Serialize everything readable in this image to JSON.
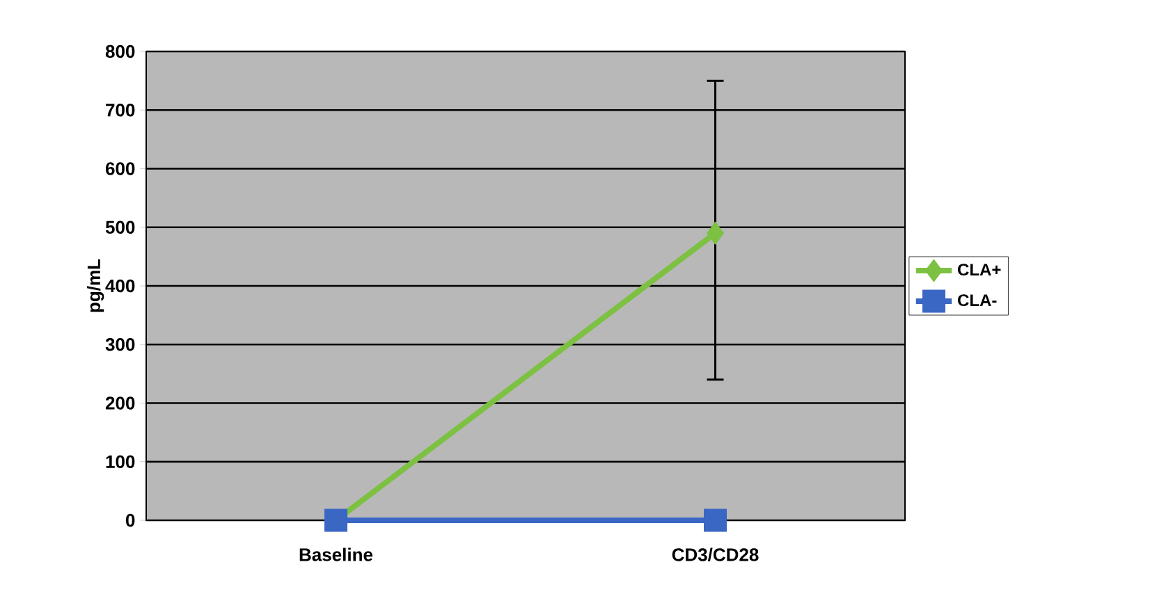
{
  "chart_data": {
    "type": "line",
    "ylabel": "pg/mL",
    "categories": [
      "Baseline",
      "CD3/CD28"
    ],
    "series": [
      {
        "name": "CLA+",
        "color": "#7dc142",
        "marker": "diamond",
        "values": [
          0,
          490
        ],
        "errors": [
          null,
          [
            240,
            750
          ]
        ]
      },
      {
        "name": "CLA-",
        "color": "#3a66c4",
        "marker": "square",
        "values": [
          0,
          0
        ]
      }
    ],
    "ylim": [
      0,
      800
    ],
    "yticks": [
      0,
      100,
      200,
      300,
      400,
      500,
      600,
      700,
      800
    ],
    "grid": "y",
    "legend": "right"
  }
}
